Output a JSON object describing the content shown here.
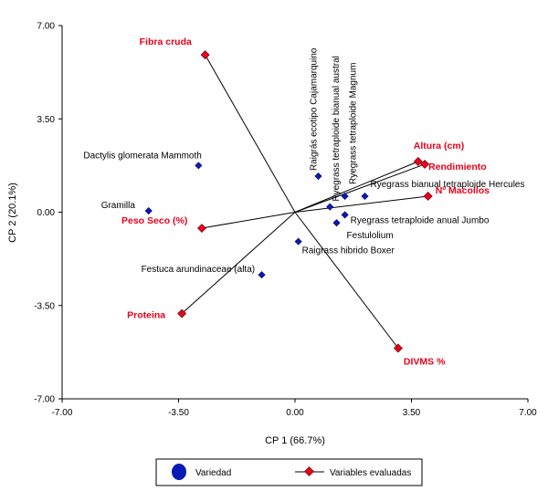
{
  "chart_data": {
    "type": "scatter",
    "subtype": "biplot",
    "title": "",
    "xlabel": "CP 1 (66.7%)",
    "ylabel": "CP 2 (20.1%)",
    "xlim": [
      -7.0,
      7.0
    ],
    "ylim": [
      -7.0,
      7.0
    ],
    "xticks": [
      "-7.00",
      "-3.50",
      "0.00",
      "3.50",
      "7.00"
    ],
    "yticks": [
      "7.00",
      "3.50",
      "0.00",
      "-3.50",
      "-7.00"
    ],
    "grid": false,
    "legend_position": "bottom",
    "colors": {
      "variety": "#0a1ab4",
      "variable_marker": "#e8001c",
      "variable_label": "#e8001c",
      "line": "#000000"
    },
    "series": [
      {
        "name": "Variedad",
        "points": [
          {
            "label": "Dactylis glomerata Mammoth",
            "x": -2.9,
            "y": 1.75
          },
          {
            "label": "Gramilla",
            "x": -4.4,
            "y": 0.05
          },
          {
            "label": "Festuca arundinaceae (alta)",
            "x": -1.0,
            "y": -2.35
          },
          {
            "label": "Raigrás ecotipo Cajamarquino",
            "x": 0.7,
            "y": 1.35
          },
          {
            "label": "Ryegrass tetraploide bianual austral",
            "x": 1.05,
            "y": 0.2
          },
          {
            "label": "Ryegrass tetraploide Magnum",
            "x": 1.5,
            "y": 0.6
          },
          {
            "label": "Ryegrass bianual tetraploide Hercules",
            "x": 2.1,
            "y": 0.6
          },
          {
            "label": "Ryegrass tetraploide anual Jumbo",
            "x": 1.5,
            "y": -0.1
          },
          {
            "label": "Festulolium",
            "x": 1.25,
            "y": -0.4
          },
          {
            "label": "Raigrass hibrido Boxer",
            "x": 0.1,
            "y": -1.1
          }
        ]
      },
      {
        "name": "Variables evaluadas",
        "vectors": [
          {
            "label": "Fibra cruda",
            "x": -2.7,
            "y": 5.9
          },
          {
            "label": "Altura (cm)",
            "x": 3.7,
            "y": 1.9
          },
          {
            "label": "Rendimiento",
            "x": 3.9,
            "y": 1.8
          },
          {
            "label": "Nº Macollos",
            "x": 4.0,
            "y": 0.6
          },
          {
            "label": "Peso Seco (%)",
            "x": -2.8,
            "y": -0.6
          },
          {
            "label": "Proteina",
            "x": -3.4,
            "y": -3.8
          },
          {
            "label": "DIVMS %",
            "x": 3.1,
            "y": -5.1
          }
        ]
      }
    ]
  },
  "legend": {
    "variety_label": "Variedad",
    "variables_label": "Variables evaluadas"
  }
}
